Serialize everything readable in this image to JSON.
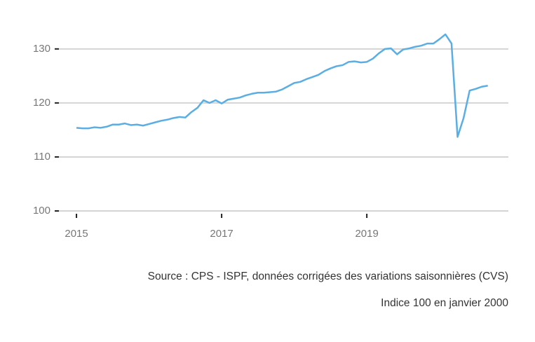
{
  "chart_data": {
    "type": "line",
    "x": [
      2015,
      2015.083,
      2015.167,
      2015.25,
      2015.333,
      2015.417,
      2015.5,
      2015.583,
      2015.667,
      2015.75,
      2015.833,
      2015.917,
      2016,
      2016.083,
      2016.167,
      2016.25,
      2016.333,
      2016.417,
      2016.5,
      2016.583,
      2016.667,
      2016.75,
      2016.833,
      2016.917,
      2017,
      2017.083,
      2017.167,
      2017.25,
      2017.333,
      2017.417,
      2017.5,
      2017.583,
      2017.667,
      2017.75,
      2017.833,
      2017.917,
      2018,
      2018.083,
      2018.167,
      2018.25,
      2018.333,
      2018.417,
      2018.5,
      2018.583,
      2018.667,
      2018.75,
      2018.833,
      2018.917,
      2019,
      2019.083,
      2019.167,
      2019.25,
      2019.333,
      2019.417,
      2019.5,
      2019.583,
      2019.667,
      2019.75,
      2019.833,
      2019.917,
      2020,
      2020.083,
      2020.167,
      2020.25,
      2020.333,
      2020.417,
      2020.5,
      2020.583,
      2020.667
    ],
    "values": [
      115.4,
      115.3,
      115.3,
      115.5,
      115.4,
      115.6,
      116.0,
      116.0,
      116.2,
      115.9,
      116.0,
      115.8,
      116.1,
      116.4,
      116.7,
      116.9,
      117.2,
      117.4,
      117.3,
      118.3,
      119.1,
      120.5,
      120.0,
      120.5,
      119.9,
      120.6,
      120.8,
      121.0,
      121.4,
      121.7,
      121.9,
      121.9,
      122.0,
      122.1,
      122.5,
      123.1,
      123.7,
      123.9,
      124.4,
      124.8,
      125.2,
      125.9,
      126.4,
      126.8,
      127.0,
      127.6,
      127.7,
      127.5,
      127.6,
      128.2,
      129.2,
      130.0,
      130.1,
      129.0,
      129.9,
      130.1,
      130.4,
      130.6,
      131.0,
      131.0,
      131.8,
      132.7,
      131.0,
      113.7,
      117.2,
      122.3,
      122.6,
      123.0,
      123.2
    ],
    "color": "#5aaee3",
    "xlim": [
      2014.7,
      2020.95
    ],
    "xticks": [
      2015,
      2017,
      2019
    ],
    "ylim": [
      100,
      134
    ],
    "yticks": [
      100,
      110,
      120,
      130
    ],
    "grid": true,
    "source": "Source : CPS - ISPF, données corrigées des variations saisonnières (CVS)",
    "note": "Indice 100 en janvier 2000"
  }
}
